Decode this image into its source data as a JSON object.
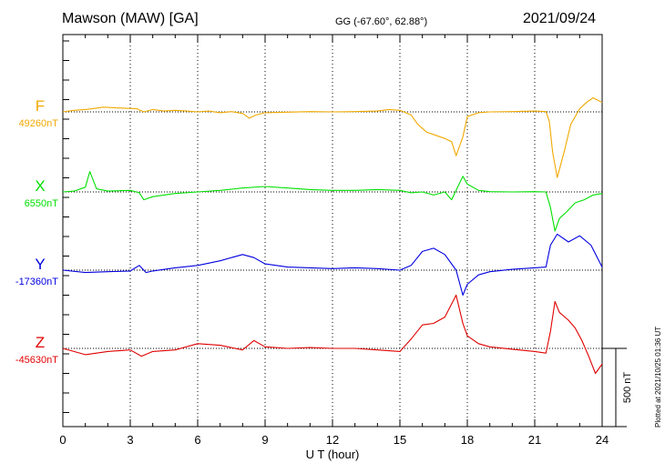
{
  "header": {
    "station": "Mawson (MAW)  [GA]",
    "coords": "GG (-67.60°,  62.88°)",
    "date": "2021/09/24"
  },
  "footer": {
    "plotted": "Plotted at 2021/10/25 01:36 UT"
  },
  "scale_label": "500 nT",
  "chart_data": {
    "type": "line",
    "xlabel": "U T (hour)",
    "xlim": [
      0,
      24
    ],
    "xticks": [
      "0",
      "3",
      "6",
      "9",
      "12",
      "15",
      "18",
      "21",
      "24"
    ],
    "scale_bar_nT": 500,
    "grid": true,
    "series": [
      {
        "name": "F",
        "baseline_label": "49260nT",
        "baseline": 49260,
        "color": "#f0a800",
        "x": [
          0,
          0.5,
          1,
          1.3,
          1.8,
          2.5,
          3.3,
          3.6,
          4,
          4.5,
          5,
          5.5,
          6,
          6.5,
          7,
          7.5,
          8,
          8.3,
          8.6,
          9,
          10,
          11,
          12,
          13,
          14,
          14.5,
          15,
          15.5,
          15.8,
          16.2,
          16.6,
          17,
          17.3,
          17.5,
          17.8,
          18,
          18.5,
          19,
          20,
          21,
          21.5,
          21.65,
          21.8,
          22,
          22.3,
          22.6,
          23,
          23.3,
          23.6,
          24
        ],
        "values": [
          49260,
          49270,
          49275,
          49280,
          49290,
          49285,
          49280,
          49260,
          49275,
          49265,
          49270,
          49265,
          49260,
          49265,
          49255,
          49262,
          49250,
          49220,
          49240,
          49255,
          49258,
          49262,
          49260,
          49262,
          49265,
          49275,
          49270,
          49240,
          49180,
          49130,
          49110,
          49090,
          49070,
          48980,
          49100,
          49230,
          49255,
          49260,
          49262,
          49265,
          49262,
          49200,
          49000,
          48840,
          49000,
          49180,
          49280,
          49320,
          49350,
          49320
        ]
      },
      {
        "name": "X",
        "baseline_label": "6550nT",
        "baseline": 6550,
        "color": "#00e000",
        "x": [
          0,
          0.5,
          1,
          1.2,
          1.5,
          2,
          3,
          3.4,
          3.6,
          4,
          4.5,
          5,
          6,
          7,
          8,
          9,
          10,
          11,
          12,
          13,
          14,
          15,
          15.5,
          16,
          16.5,
          17,
          17.3,
          17.5,
          17.8,
          18,
          18.5,
          19,
          20,
          21,
          21.5,
          21.7,
          21.9,
          22.1,
          22.4,
          22.8,
          23.2,
          23.6,
          24
        ],
        "values": [
          6550,
          6555,
          6580,
          6680,
          6570,
          6555,
          6560,
          6545,
          6500,
          6520,
          6530,
          6540,
          6550,
          6560,
          6575,
          6585,
          6575,
          6565,
          6560,
          6560,
          6565,
          6560,
          6545,
          6550,
          6530,
          6550,
          6500,
          6560,
          6650,
          6600,
          6560,
          6552,
          6550,
          6552,
          6550,
          6450,
          6300,
          6380,
          6420,
          6480,
          6500,
          6530,
          6540
        ]
      },
      {
        "name": "Y",
        "baseline_label": "-17360nT",
        "baseline": -17360,
        "color": "#0000e0",
        "x": [
          0,
          1,
          2,
          3,
          3.4,
          3.7,
          4,
          5,
          6,
          7,
          8,
          8.5,
          9,
          10,
          11,
          12,
          13,
          14,
          15,
          15.5,
          16,
          16.5,
          17,
          17.5,
          17.8,
          18,
          18.5,
          19,
          20,
          21,
          21.5,
          21.7,
          22,
          22.5,
          23,
          23.5,
          24
        ],
        "values": [
          -17360,
          -17375,
          -17370,
          -17365,
          -17330,
          -17375,
          -17365,
          -17345,
          -17330,
          -17300,
          -17260,
          -17280,
          -17320,
          -17340,
          -17345,
          -17350,
          -17345,
          -17350,
          -17360,
          -17330,
          -17240,
          -17220,
          -17260,
          -17360,
          -17520,
          -17450,
          -17390,
          -17370,
          -17355,
          -17345,
          -17340,
          -17200,
          -17130,
          -17180,
          -17140,
          -17200,
          -17340
        ]
      },
      {
        "name": "Z",
        "baseline_label": "-45630nT",
        "baseline": -45630,
        "color": "#e00000",
        "x": [
          0,
          1,
          2,
          3,
          3.5,
          4,
          5,
          6,
          7,
          8,
          8.5,
          9,
          10,
          11,
          12,
          13,
          14,
          15,
          15.5,
          16,
          16.5,
          17,
          17.5,
          17.8,
          18,
          18.5,
          19,
          20,
          21,
          21.5,
          21.7,
          21.9,
          22.1,
          22.5,
          22.8,
          23.1,
          23.4,
          23.7,
          24
        ],
        "values": [
          -45630,
          -45670,
          -45650,
          -45640,
          -45680,
          -45650,
          -45640,
          -45600,
          -45610,
          -45640,
          -45580,
          -45620,
          -45630,
          -45625,
          -45630,
          -45630,
          -45640,
          -45650,
          -45570,
          -45480,
          -45470,
          -45430,
          -45290,
          -45470,
          -45550,
          -45600,
          -45620,
          -45635,
          -45650,
          -45660,
          -45520,
          -45330,
          -45400,
          -45450,
          -45500,
          -45580,
          -45680,
          -45790,
          -45730
        ]
      }
    ]
  }
}
